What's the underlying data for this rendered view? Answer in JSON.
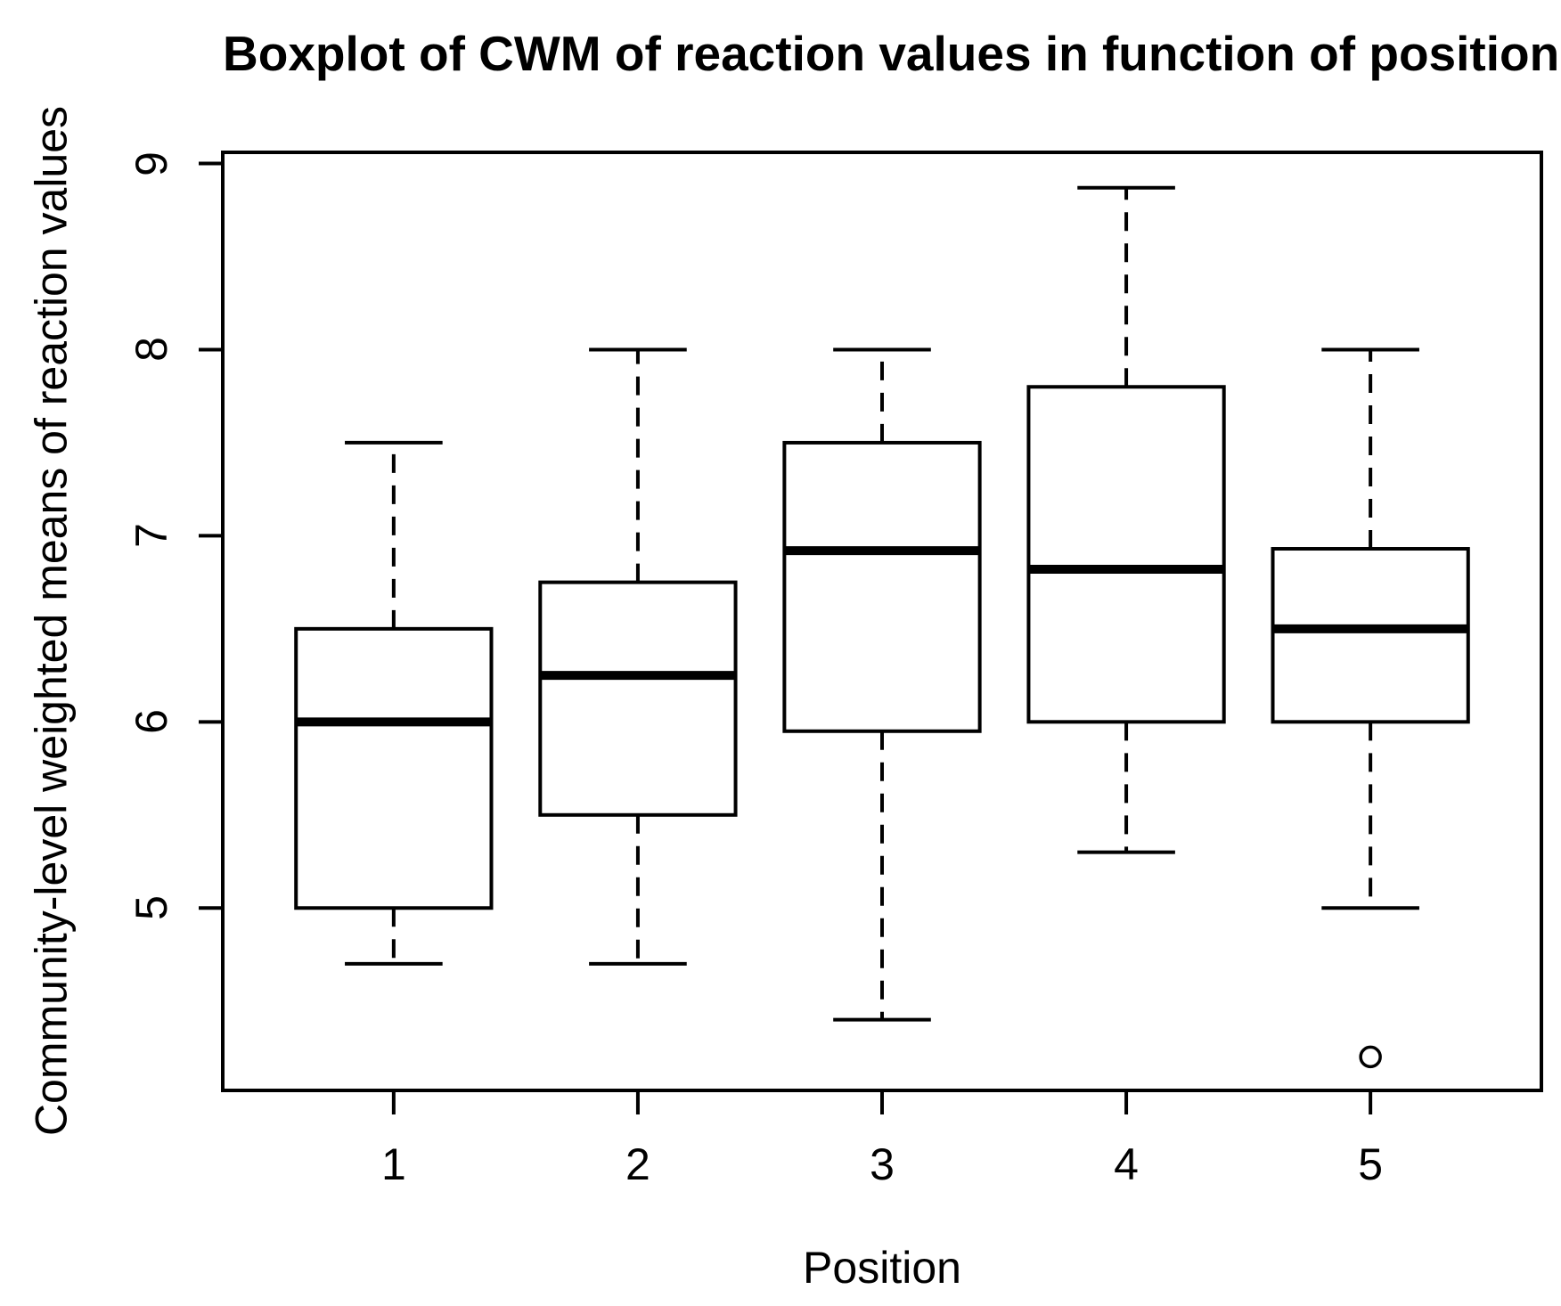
{
  "chart_data": {
    "type": "boxplot",
    "title": "Boxplot of CWM of reaction values in function of position",
    "xlabel": "Position",
    "ylabel": "Community-level weighted means of reaction values",
    "categories": [
      "1",
      "2",
      "3",
      "4",
      "5"
    ],
    "y_ticks": [
      5,
      6,
      7,
      8,
      9
    ],
    "ylim": [
      4.02,
      9.06
    ],
    "xlim": [
      0.3,
      5.7
    ],
    "grid": false,
    "legend": null,
    "box_width_units": 0.8,
    "cap_width_units": 0.4,
    "line_color": "#000000",
    "background_color": "#ffffff",
    "boxes": [
      {
        "position": 1,
        "whisker_low": 4.7,
        "q1": 5.0,
        "median": 6.0,
        "q3": 6.5,
        "whisker_high": 7.5,
        "outliers": []
      },
      {
        "position": 2,
        "whisker_low": 4.7,
        "q1": 5.5,
        "median": 6.25,
        "q3": 6.75,
        "whisker_high": 8.0,
        "outliers": []
      },
      {
        "position": 3,
        "whisker_low": 4.4,
        "q1": 5.95,
        "median": 6.92,
        "q3": 7.5,
        "whisker_high": 8.0,
        "outliers": []
      },
      {
        "position": 4,
        "whisker_low": 5.3,
        "q1": 6.0,
        "median": 6.82,
        "q3": 7.8,
        "whisker_high": 8.87,
        "outliers": []
      },
      {
        "position": 5,
        "whisker_low": 5.0,
        "q1": 6.0,
        "median": 6.5,
        "q3": 6.93,
        "whisker_high": 8.0,
        "outliers": [
          4.2
        ]
      }
    ]
  }
}
